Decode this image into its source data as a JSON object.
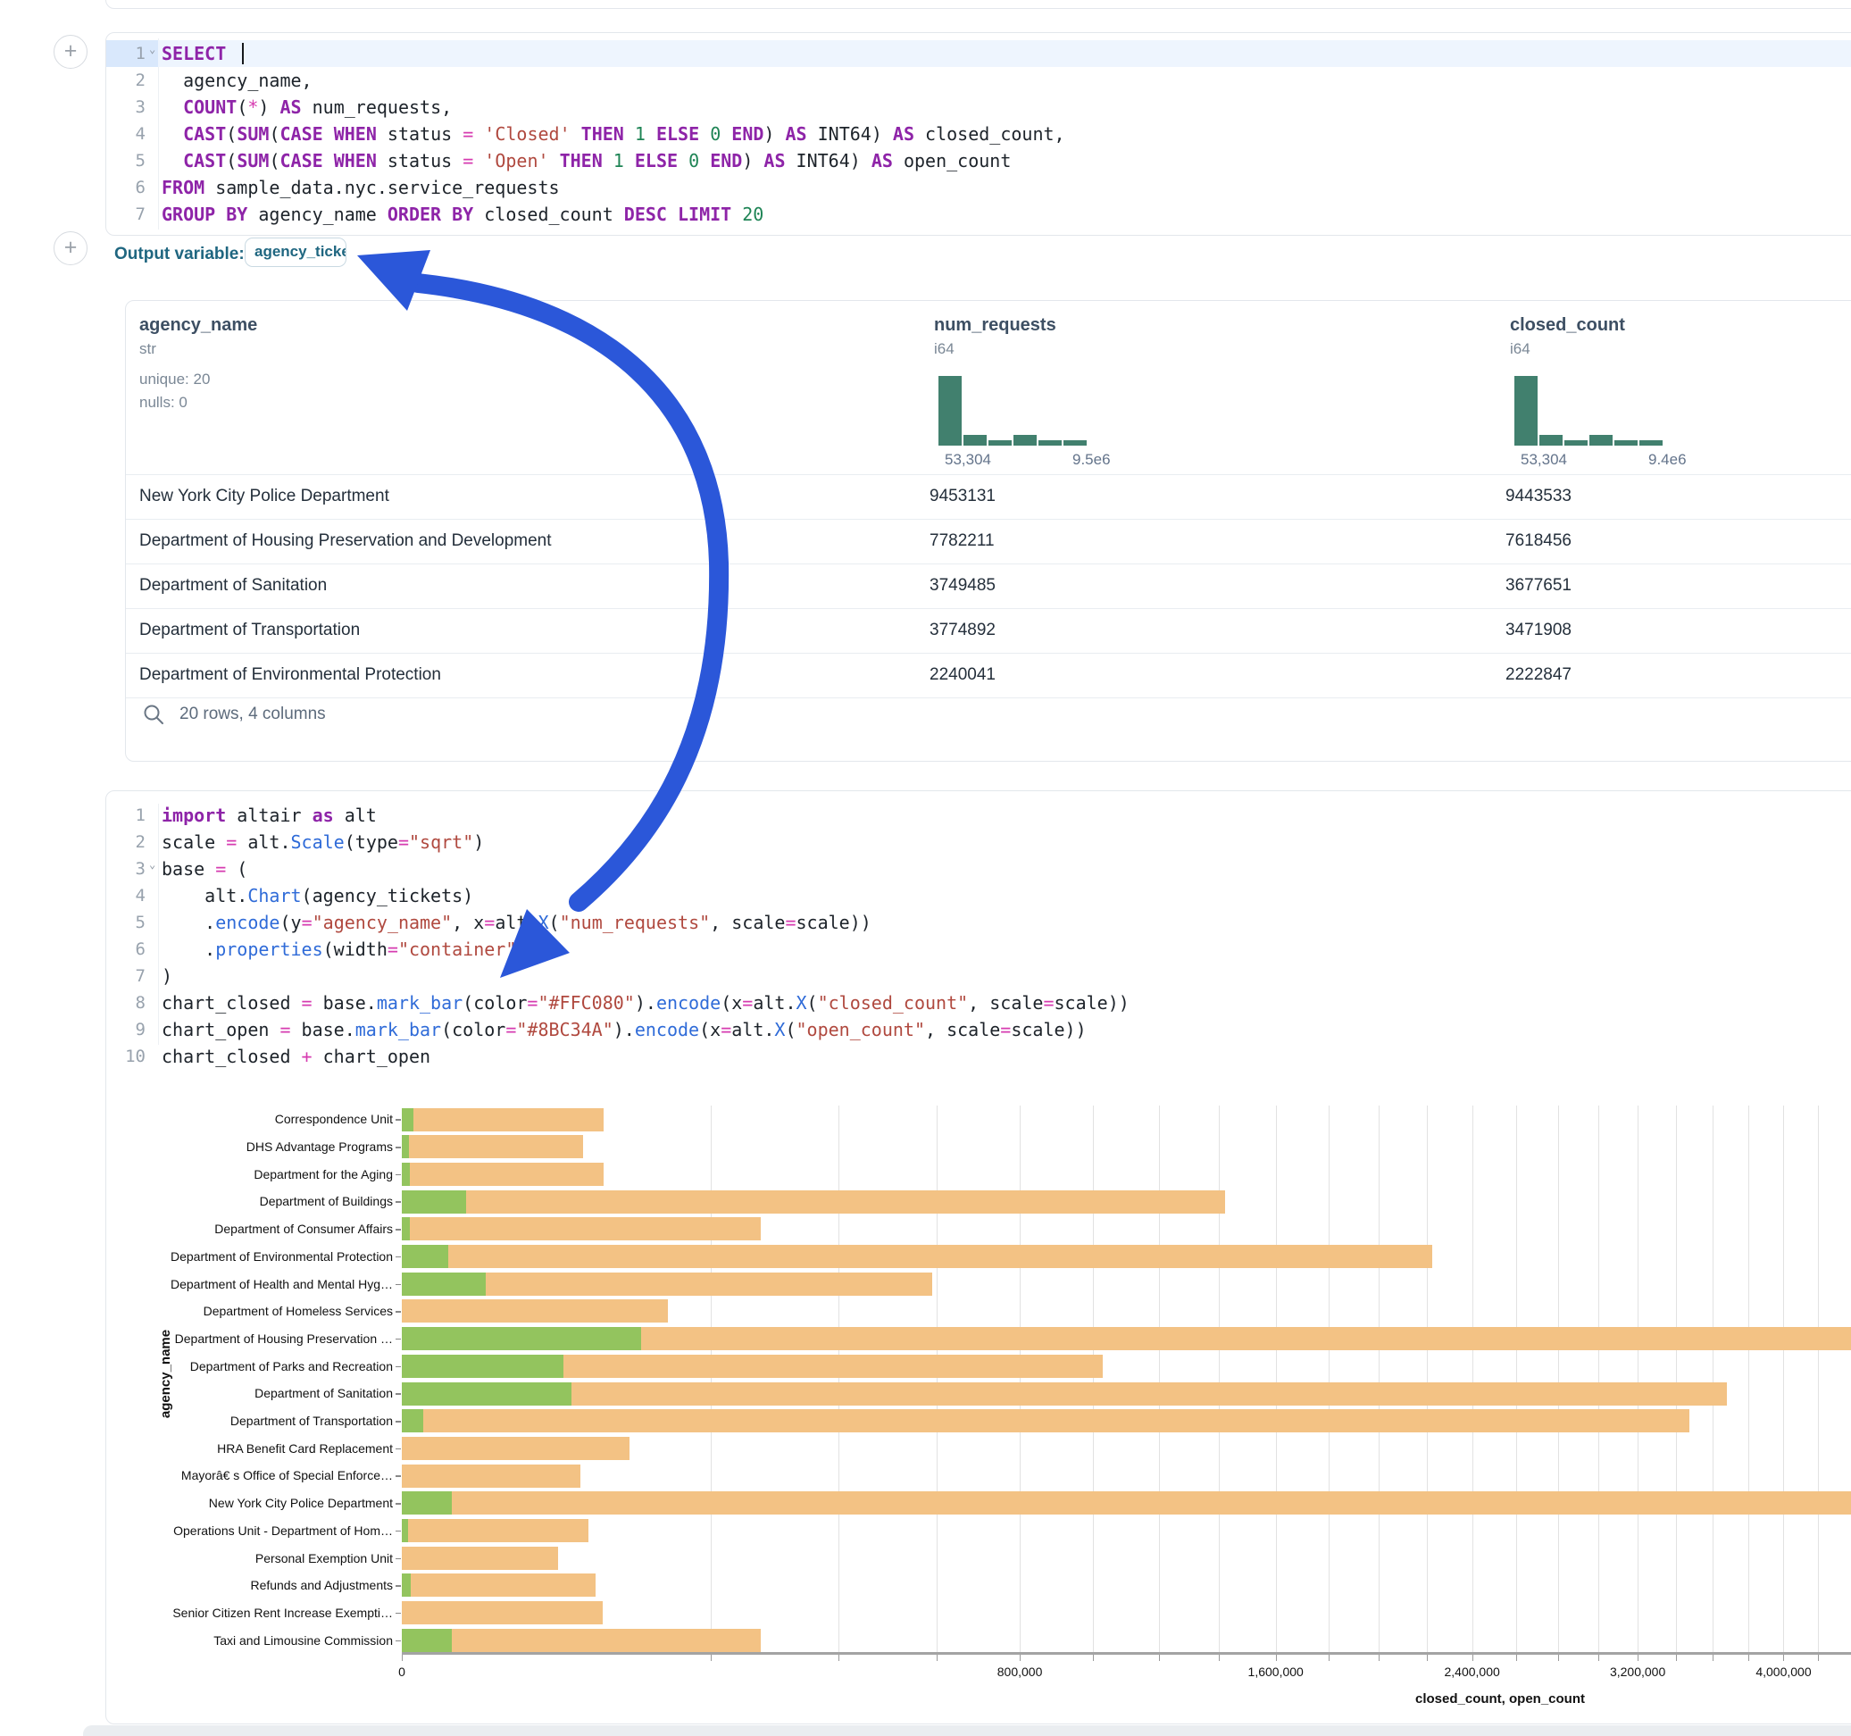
{
  "colors": {
    "arrow_accent": "#2B57D9",
    "closed_bar": "#F3C284",
    "open_bar": "#93C45E",
    "histogram_bar": "#41806e"
  },
  "add_buttons": {
    "plus_label": "+"
  },
  "sql_cell": {
    "lines": [
      {
        "n": "1",
        "chev": true,
        "active": true,
        "caret": true,
        "tokens": [
          {
            "c": "k",
            "t": "SELECT"
          },
          {
            "c": "p",
            "t": " "
          }
        ]
      },
      {
        "n": "2",
        "tokens": [
          {
            "c": "p",
            "t": "  agency_name,"
          }
        ]
      },
      {
        "n": "3",
        "tokens": [
          {
            "c": "p",
            "t": "  "
          },
          {
            "c": "k",
            "t": "COUNT"
          },
          {
            "c": "p",
            "t": "("
          },
          {
            "c": "o",
            "t": "*"
          },
          {
            "c": "p",
            "t": ") "
          },
          {
            "c": "k",
            "t": "AS"
          },
          {
            "c": "p",
            "t": " num_requests,"
          }
        ]
      },
      {
        "n": "4",
        "tokens": [
          {
            "c": "p",
            "t": "  "
          },
          {
            "c": "k",
            "t": "CAST"
          },
          {
            "c": "p",
            "t": "("
          },
          {
            "c": "k",
            "t": "SUM"
          },
          {
            "c": "p",
            "t": "("
          },
          {
            "c": "k",
            "t": "CASE WHEN"
          },
          {
            "c": "p",
            "t": " status "
          },
          {
            "c": "o",
            "t": "="
          },
          {
            "c": "p",
            "t": " "
          },
          {
            "c": "s",
            "t": "'Closed'"
          },
          {
            "c": "p",
            "t": " "
          },
          {
            "c": "k",
            "t": "THEN"
          },
          {
            "c": "p",
            "t": " "
          },
          {
            "c": "n",
            "t": "1"
          },
          {
            "c": "p",
            "t": " "
          },
          {
            "c": "k",
            "t": "ELSE"
          },
          {
            "c": "p",
            "t": " "
          },
          {
            "c": "n",
            "t": "0"
          },
          {
            "c": "p",
            "t": " "
          },
          {
            "c": "k",
            "t": "END"
          },
          {
            "c": "p",
            "t": ") "
          },
          {
            "c": "k",
            "t": "AS"
          },
          {
            "c": "p",
            "t": " INT64) "
          },
          {
            "c": "k",
            "t": "AS"
          },
          {
            "c": "p",
            "t": " closed_count,"
          }
        ]
      },
      {
        "n": "5",
        "tokens": [
          {
            "c": "p",
            "t": "  "
          },
          {
            "c": "k",
            "t": "CAST"
          },
          {
            "c": "p",
            "t": "("
          },
          {
            "c": "k",
            "t": "SUM"
          },
          {
            "c": "p",
            "t": "("
          },
          {
            "c": "k",
            "t": "CASE WHEN"
          },
          {
            "c": "p",
            "t": " status "
          },
          {
            "c": "o",
            "t": "="
          },
          {
            "c": "p",
            "t": " "
          },
          {
            "c": "s",
            "t": "'Open'"
          },
          {
            "c": "p",
            "t": " "
          },
          {
            "c": "k",
            "t": "THEN"
          },
          {
            "c": "p",
            "t": " "
          },
          {
            "c": "n",
            "t": "1"
          },
          {
            "c": "p",
            "t": " "
          },
          {
            "c": "k",
            "t": "ELSE"
          },
          {
            "c": "p",
            "t": " "
          },
          {
            "c": "n",
            "t": "0"
          },
          {
            "c": "p",
            "t": " "
          },
          {
            "c": "k",
            "t": "END"
          },
          {
            "c": "p",
            "t": ") "
          },
          {
            "c": "k",
            "t": "AS"
          },
          {
            "c": "p",
            "t": " INT64) "
          },
          {
            "c": "k",
            "t": "AS"
          },
          {
            "c": "p",
            "t": " open_count"
          }
        ]
      },
      {
        "n": "6",
        "tokens": [
          {
            "c": "k",
            "t": "FROM"
          },
          {
            "c": "p",
            "t": " sample_data.nyc.service_requests"
          }
        ]
      },
      {
        "n": "7",
        "tokens": [
          {
            "c": "k",
            "t": "GROUP BY"
          },
          {
            "c": "p",
            "t": " agency_name "
          },
          {
            "c": "k",
            "t": "ORDER BY"
          },
          {
            "c": "p",
            "t": " closed_count "
          },
          {
            "c": "k",
            "t": "DESC"
          },
          {
            "c": "p",
            "t": " "
          },
          {
            "c": "k",
            "t": "LIMIT"
          },
          {
            "c": "p",
            "t": " "
          },
          {
            "c": "n",
            "t": "20"
          }
        ]
      }
    ]
  },
  "output_variable": {
    "label": "Output variable:",
    "value": "agency_tickets"
  },
  "table": {
    "columns": [
      {
        "name": "agency_name",
        "type": "str",
        "stats": [
          "unique: 20",
          "nulls: 0"
        ]
      },
      {
        "name": "num_requests",
        "type": "i64",
        "hist": {
          "bars": [
            1,
            0.15,
            0.08,
            0.15,
            0.08,
            0.08
          ],
          "min_label": "53,304",
          "max_label": "9.5e6"
        }
      },
      {
        "name": "closed_count",
        "type": "i64",
        "hist": {
          "bars": [
            1,
            0.15,
            0.08,
            0.15,
            0.07,
            0.07
          ],
          "min_label": "53,304",
          "max_label": "9.4e6"
        }
      }
    ],
    "rows": [
      [
        "New York City Police Department",
        "9453131",
        "9443533"
      ],
      [
        "Department of Housing Preservation and Development",
        "7782211",
        "7618456"
      ],
      [
        "Department of Sanitation",
        "3749485",
        "3677651"
      ],
      [
        "Department of Transportation",
        "3774892",
        "3471908"
      ],
      [
        "Department of Environmental Protection",
        "2240041",
        "2222847"
      ]
    ],
    "footer": "20 rows, 4 columns"
  },
  "python_cell": {
    "lines": [
      {
        "n": "1",
        "tokens": [
          {
            "c": "k",
            "t": "import"
          },
          {
            "c": "p",
            "t": " altair "
          },
          {
            "c": "k",
            "t": "as"
          },
          {
            "c": "p",
            "t": " alt"
          }
        ]
      },
      {
        "n": "2",
        "tokens": [
          {
            "c": "p",
            "t": "scale "
          },
          {
            "c": "o",
            "t": "="
          },
          {
            "c": "p",
            "t": " alt."
          },
          {
            "c": "f",
            "t": "Scale"
          },
          {
            "c": "p",
            "t": "(type"
          },
          {
            "c": "o",
            "t": "="
          },
          {
            "c": "s",
            "t": "\"sqrt\""
          },
          {
            "c": "p",
            "t": ")"
          }
        ]
      },
      {
        "n": "3",
        "chev": true,
        "tokens": [
          {
            "c": "p",
            "t": "base "
          },
          {
            "c": "o",
            "t": "="
          },
          {
            "c": "p",
            "t": " ("
          }
        ]
      },
      {
        "n": "4",
        "tokens": [
          {
            "c": "p",
            "t": "    alt."
          },
          {
            "c": "f",
            "t": "Chart"
          },
          {
            "c": "p",
            "t": "(agency_tickets)"
          }
        ]
      },
      {
        "n": "5",
        "tokens": [
          {
            "c": "p",
            "t": "    ."
          },
          {
            "c": "f",
            "t": "encode"
          },
          {
            "c": "p",
            "t": "(y"
          },
          {
            "c": "o",
            "t": "="
          },
          {
            "c": "s",
            "t": "\"agency_name\""
          },
          {
            "c": "p",
            "t": ", x"
          },
          {
            "c": "o",
            "t": "="
          },
          {
            "c": "p",
            "t": "alt."
          },
          {
            "c": "f",
            "t": "X"
          },
          {
            "c": "p",
            "t": "("
          },
          {
            "c": "s",
            "t": "\"num_requests\""
          },
          {
            "c": "p",
            "t": ", scale"
          },
          {
            "c": "o",
            "t": "="
          },
          {
            "c": "p",
            "t": "scale))"
          }
        ]
      },
      {
        "n": "6",
        "tokens": [
          {
            "c": "p",
            "t": "    ."
          },
          {
            "c": "f",
            "t": "properties"
          },
          {
            "c": "p",
            "t": "(width"
          },
          {
            "c": "o",
            "t": "="
          },
          {
            "c": "s",
            "t": "\"container\""
          },
          {
            "c": "p",
            "t": ")"
          }
        ]
      },
      {
        "n": "7",
        "tokens": [
          {
            "c": "p",
            "t": ")"
          }
        ]
      },
      {
        "n": "8",
        "tokens": [
          {
            "c": "p",
            "t": "chart_closed "
          },
          {
            "c": "o",
            "t": "="
          },
          {
            "c": "p",
            "t": " base."
          },
          {
            "c": "f",
            "t": "mark_bar"
          },
          {
            "c": "p",
            "t": "(color"
          },
          {
            "c": "o",
            "t": "="
          },
          {
            "c": "s",
            "t": "\"#FFC080\""
          },
          {
            "c": "p",
            "t": ")."
          },
          {
            "c": "f",
            "t": "encode"
          },
          {
            "c": "p",
            "t": "(x"
          },
          {
            "c": "o",
            "t": "="
          },
          {
            "c": "p",
            "t": "alt."
          },
          {
            "c": "f",
            "t": "X"
          },
          {
            "c": "p",
            "t": "("
          },
          {
            "c": "s",
            "t": "\"closed_count\""
          },
          {
            "c": "p",
            "t": ", scale"
          },
          {
            "c": "o",
            "t": "="
          },
          {
            "c": "p",
            "t": "scale))"
          }
        ]
      },
      {
        "n": "9",
        "tokens": [
          {
            "c": "p",
            "t": "chart_open "
          },
          {
            "c": "o",
            "t": "="
          },
          {
            "c": "p",
            "t": " base."
          },
          {
            "c": "f",
            "t": "mark_bar"
          },
          {
            "c": "p",
            "t": "(color"
          },
          {
            "c": "o",
            "t": "="
          },
          {
            "c": "s",
            "t": "\"#8BC34A\""
          },
          {
            "c": "p",
            "t": ")."
          },
          {
            "c": "f",
            "t": "encode"
          },
          {
            "c": "p",
            "t": "(x"
          },
          {
            "c": "o",
            "t": "="
          },
          {
            "c": "p",
            "t": "alt."
          },
          {
            "c": "f",
            "t": "X"
          },
          {
            "c": "p",
            "t": "("
          },
          {
            "c": "s",
            "t": "\"open_count\""
          },
          {
            "c": "p",
            "t": ", scale"
          },
          {
            "c": "o",
            "t": "="
          },
          {
            "c": "p",
            "t": "scale))"
          }
        ]
      },
      {
        "n": "10",
        "tokens": [
          {
            "c": "p",
            "t": "chart_closed "
          },
          {
            "c": "o",
            "t": "+"
          },
          {
            "c": "p",
            "t": " chart_open"
          }
        ]
      }
    ]
  },
  "chart_data": {
    "type": "bar",
    "orientation": "horizontal",
    "title": "",
    "xlabel": "closed_count, open_count",
    "ylabel": "agency_name",
    "grid": true,
    "x_scale": {
      "type": "sqrt",
      "grid_step": 200000,
      "label_step": 800000,
      "visible_max": 4400000
    },
    "x_tick_labels": [
      {
        "label": "0",
        "value": 0
      },
      {
        "label": "800,000",
        "value": 800000
      },
      {
        "label": "1,600,000",
        "value": 1600000
      },
      {
        "label": "2,400,000",
        "value": 2400000
      },
      {
        "label": "3,200,000",
        "value": 3200000
      },
      {
        "label": "4,000,000",
        "value": 4000000
      }
    ],
    "categories": [
      "Correspondence Unit",
      "DHS Advantage Programs",
      "Department for the Aging",
      "Department of Buildings",
      "Department of Consumer Affairs",
      "Department of Environmental Protection",
      "Department of Health and Mental Hyg…",
      "Department of Homeless Services",
      "Department of Housing Preservation …",
      "Department of Parks and Recreation",
      "Department of Sanitation",
      "Department of Transportation",
      "HRA Benefit Card Replacement",
      "Mayorâ€ s Office of Special Enforce…",
      "New York City Police Department",
      "Operations Unit - Department of Hom…",
      "Personal Exemption Unit",
      "Refunds and Adjustments",
      "Senior Citizen Rent Increase Exempti…",
      "Taxi and Limousine Commission"
    ],
    "series": [
      {
        "name": "closed_count",
        "color": "#F3C284",
        "values": [
          85000,
          69000,
          85000,
          1420000,
          270000,
          2222847,
          590000,
          148000,
          7618456,
          1030000,
          3677651,
          3471908,
          109000,
          67000,
          9443533,
          73000,
          51000,
          79000,
          84500,
          270000
        ]
      },
      {
        "name": "open_count",
        "color": "#93C45E",
        "values": [
          300,
          120,
          150,
          8600,
          150,
          4500,
          14900,
          0,
          120000,
          55000,
          60000,
          1000,
          0,
          0,
          5300,
          80,
          0,
          180,
          0,
          5300
        ]
      }
    ]
  }
}
